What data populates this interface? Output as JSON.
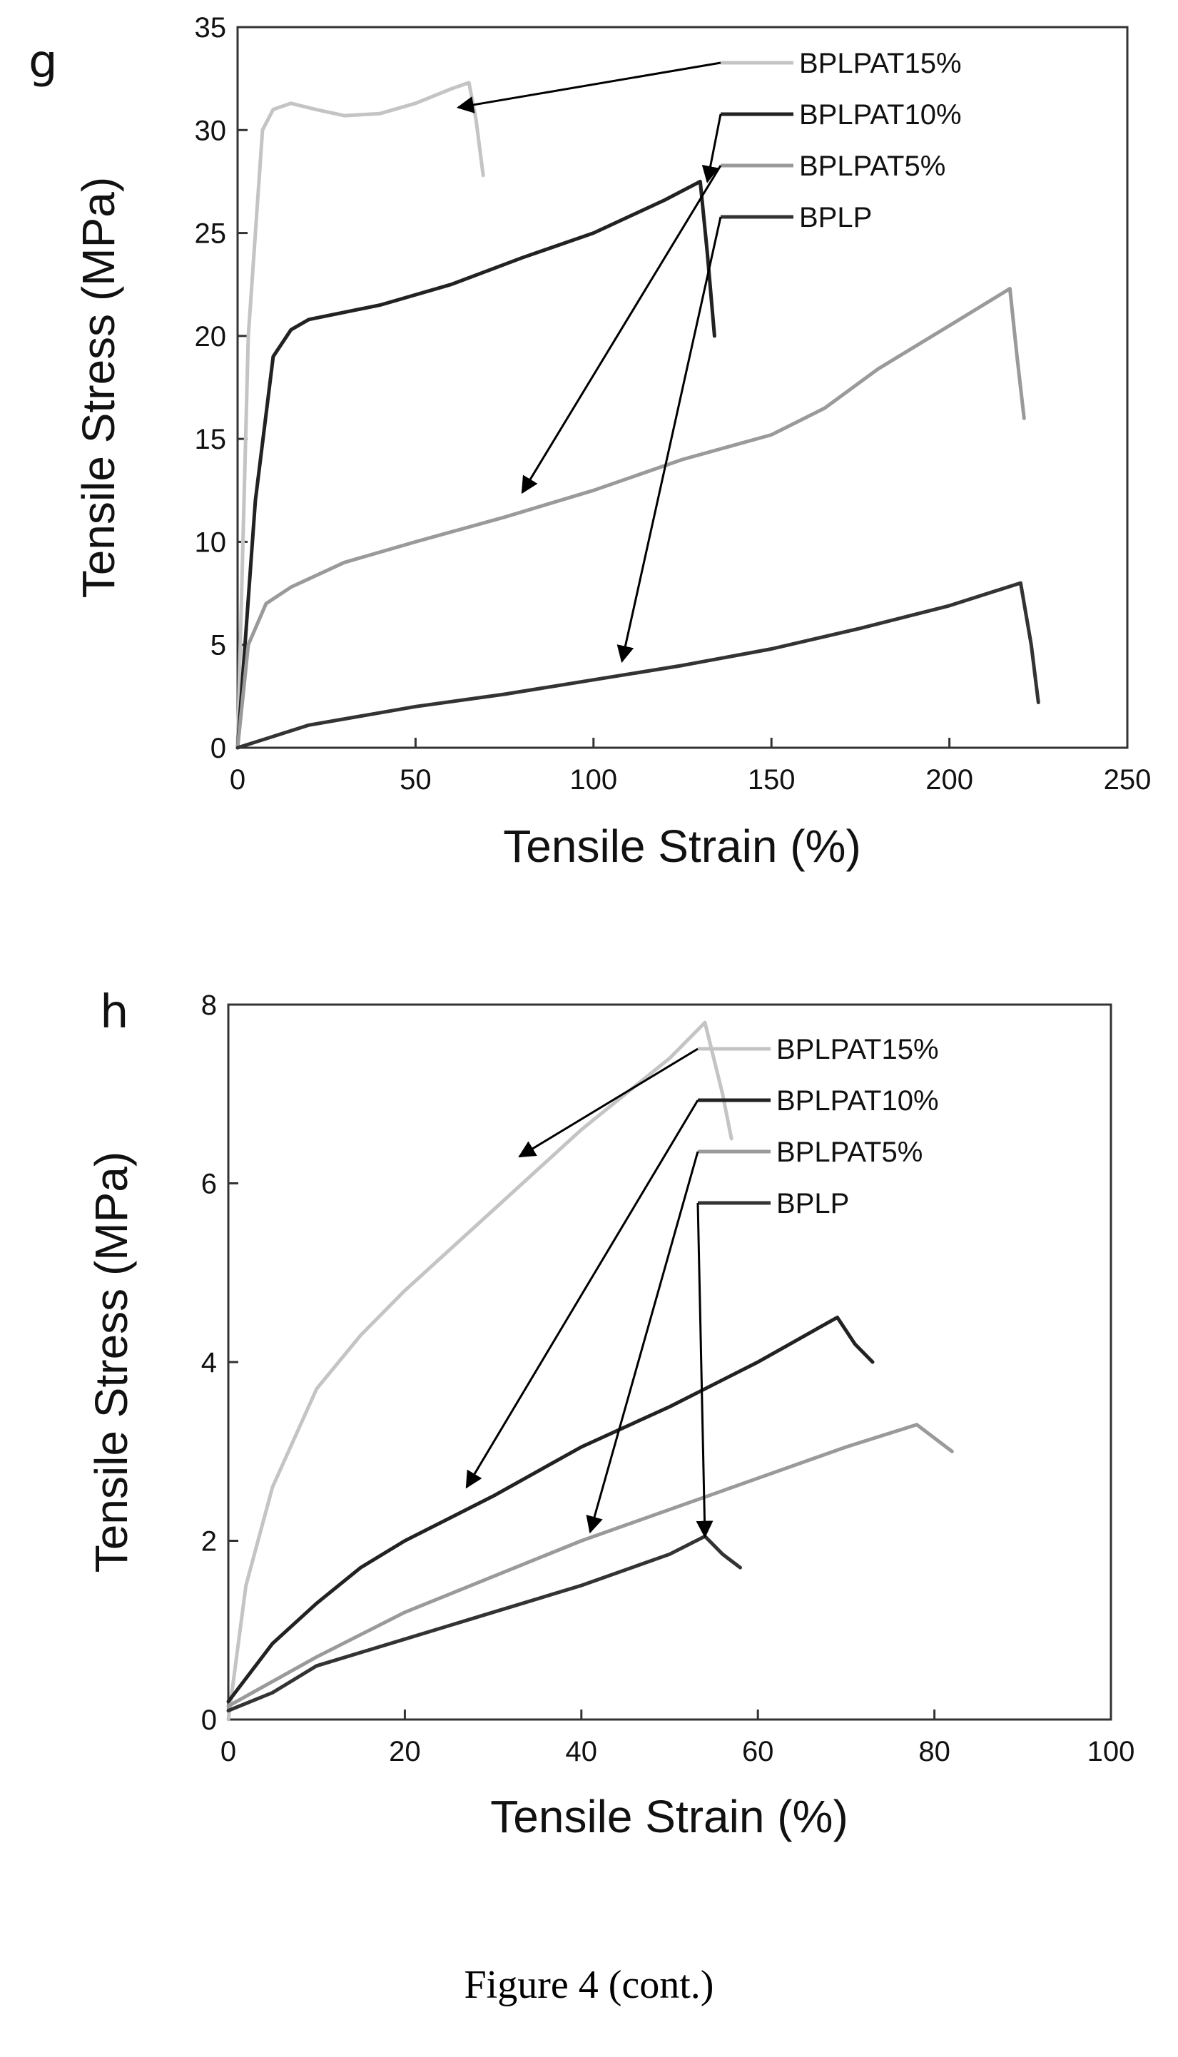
{
  "caption": "Figure 4 (cont.)",
  "chart_data": [
    {
      "panel": "g",
      "type": "line",
      "xlabel": "Tensile Strain (%)",
      "ylabel": "Tensile Stress (MPa)",
      "xlim": [
        0,
        250
      ],
      "ylim": [
        0,
        35
      ],
      "xticks": [
        0,
        50,
        100,
        150,
        200,
        250
      ],
      "yticks": [
        0,
        5,
        10,
        15,
        20,
        25,
        30,
        35
      ],
      "grid": false,
      "legend_position": "top-right",
      "series": [
        {
          "name": "BPLPAT15%",
          "color": "#c4c4c4",
          "points": [
            [
              0,
              0
            ],
            [
              3,
              20
            ],
            [
              7,
              30
            ],
            [
              10,
              31
            ],
            [
              15,
              31.3
            ],
            [
              22,
              31
            ],
            [
              30,
              30.7
            ],
            [
              40,
              30.8
            ],
            [
              50,
              31.3
            ],
            [
              60,
              32
            ],
            [
              65,
              32.3
            ],
            [
              67,
              30.5
            ],
            [
              69,
              27.8
            ]
          ],
          "label_anchor": [
            62,
            31.1
          ]
        },
        {
          "name": "BPLPAT10%",
          "color": "#222222",
          "points": [
            [
              0,
              0
            ],
            [
              5,
              12
            ],
            [
              10,
              19
            ],
            [
              15,
              20.3
            ],
            [
              20,
              20.8
            ],
            [
              40,
              21.5
            ],
            [
              60,
              22.5
            ],
            [
              80,
              23.8
            ],
            [
              100,
              25
            ],
            [
              120,
              26.6
            ],
            [
              130,
              27.5
            ],
            [
              132,
              24
            ],
            [
              134,
              20
            ]
          ],
          "label_anchor": [
            132,
            27.5
          ]
        },
        {
          "name": "BPLPAT5%",
          "color": "#9a9a9a",
          "points": [
            [
              0,
              0
            ],
            [
              3,
              5
            ],
            [
              8,
              7
            ],
            [
              15,
              7.8
            ],
            [
              30,
              9
            ],
            [
              50,
              10
            ],
            [
              75,
              11.2
            ],
            [
              100,
              12.5
            ],
            [
              125,
              14
            ],
            [
              150,
              15.2
            ],
            [
              165,
              16.5
            ],
            [
              180,
              18.4
            ],
            [
              200,
              20.5
            ],
            [
              217,
              22.3
            ],
            [
              219,
              19
            ],
            [
              221,
              16
            ]
          ],
          "label_anchor": [
            80,
            12.4
          ]
        },
        {
          "name": "BPLP",
          "color": "#333333",
          "points": [
            [
              0,
              0
            ],
            [
              20,
              1.1
            ],
            [
              50,
              2
            ],
            [
              75,
              2.6
            ],
            [
              100,
              3.3
            ],
            [
              125,
              4
            ],
            [
              150,
              4.8
            ],
            [
              175,
              5.8
            ],
            [
              200,
              6.9
            ],
            [
              220,
              8
            ],
            [
              223,
              5
            ],
            [
              225,
              2.2
            ]
          ],
          "label_anchor": [
            108,
            4.2
          ]
        }
      ]
    },
    {
      "panel": "h",
      "type": "line",
      "xlabel": "Tensile Strain (%)",
      "ylabel": "Tensile Stress (MPa)",
      "xlim": [
        0,
        100
      ],
      "ylim": [
        0,
        8
      ],
      "xticks": [
        0,
        20,
        40,
        60,
        80,
        100
      ],
      "yticks": [
        0,
        2,
        4,
        6,
        8
      ],
      "grid": false,
      "legend_position": "top-right",
      "series": [
        {
          "name": "BPLPAT15%",
          "color": "#c4c4c4",
          "points": [
            [
              0,
              0
            ],
            [
              2,
              1.5
            ],
            [
              5,
              2.6
            ],
            [
              10,
              3.7
            ],
            [
              15,
              4.3
            ],
            [
              20,
              4.8
            ],
            [
              30,
              5.7
            ],
            [
              40,
              6.6
            ],
            [
              50,
              7.4
            ],
            [
              54,
              7.8
            ],
            [
              56,
              7
            ],
            [
              57,
              6.5
            ]
          ],
          "label_anchor": [
            33,
            6.3
          ]
        },
        {
          "name": "BPLPAT10%",
          "color": "#222222",
          "points": [
            [
              0,
              0.2
            ],
            [
              5,
              0.85
            ],
            [
              10,
              1.3
            ],
            [
              15,
              1.7
            ],
            [
              20,
              2
            ],
            [
              30,
              2.5
            ],
            [
              40,
              3.05
            ],
            [
              50,
              3.5
            ],
            [
              60,
              4
            ],
            [
              69,
              4.5
            ],
            [
              71,
              4.2
            ],
            [
              73,
              4
            ]
          ],
          "label_anchor": [
            27,
            2.6
          ]
        },
        {
          "name": "BPLPAT5%",
          "color": "#9a9a9a",
          "points": [
            [
              0,
              0.15
            ],
            [
              10,
              0.7
            ],
            [
              20,
              1.2
            ],
            [
              30,
              1.6
            ],
            [
              40,
              2
            ],
            [
              50,
              2.35
            ],
            [
              60,
              2.7
            ],
            [
              70,
              3.05
            ],
            [
              78,
              3.3
            ],
            [
              80,
              3.15
            ],
            [
              82,
              3
            ]
          ],
          "label_anchor": [
            41,
            2.1
          ]
        },
        {
          "name": "BPLP",
          "color": "#333333",
          "points": [
            [
              0,
              0.1
            ],
            [
              5,
              0.3
            ],
            [
              10,
              0.6
            ],
            [
              20,
              0.9
            ],
            [
              30,
              1.2
            ],
            [
              40,
              1.5
            ],
            [
              50,
              1.85
            ],
            [
              54,
              2.05
            ],
            [
              56,
              1.85
            ],
            [
              58,
              1.7
            ]
          ],
          "label_anchor": [
            54,
            2.05
          ]
        }
      ]
    }
  ]
}
